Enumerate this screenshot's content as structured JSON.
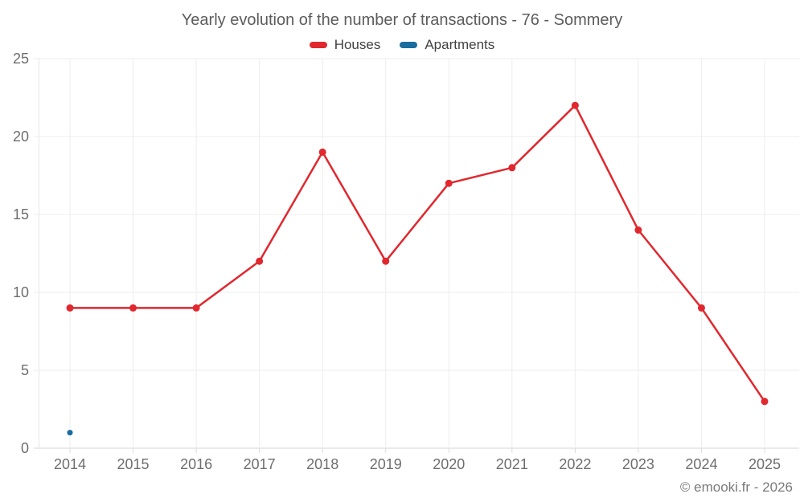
{
  "chart": {
    "title": "Yearly evolution of the number of transactions - 76 - Sommery",
    "copyright": "© emooki.fr - 2026",
    "colors": {
      "grid": "#ededed",
      "axis_line": "#d6d6d6",
      "plot_border": "#e7e7e7",
      "tick": "#dcdcdc",
      "axis_label": "#6e6e6e",
      "title_text": "#5c5c5c",
      "legend_text": "#414141",
      "background": "#ffffff"
    }
  },
  "chart_data": {
    "type": "line",
    "title": "Yearly evolution of the number of transactions - 76 - Sommery",
    "categories": [
      "2014",
      "2015",
      "2016",
      "2017",
      "2018",
      "2019",
      "2020",
      "2021",
      "2022",
      "2023",
      "2024",
      "2025"
    ],
    "series": [
      {
        "name": "Houses",
        "color": "#e0282e",
        "values": [
          9,
          9,
          9,
          12,
          19,
          12,
          17,
          18,
          22,
          14,
          9,
          3
        ]
      },
      {
        "name": "Apartments",
        "color": "#176d9e",
        "values": [
          1,
          null,
          null,
          null,
          null,
          null,
          null,
          null,
          null,
          null,
          null,
          null
        ]
      }
    ],
    "xlabel": "",
    "ylabel": "",
    "ylim": [
      0,
      25
    ],
    "yticks": [
      0,
      5,
      10,
      15,
      20,
      25
    ],
    "grid": true,
    "legend_position": "top",
    "annotations": [
      "© emooki.fr - 2026"
    ]
  }
}
